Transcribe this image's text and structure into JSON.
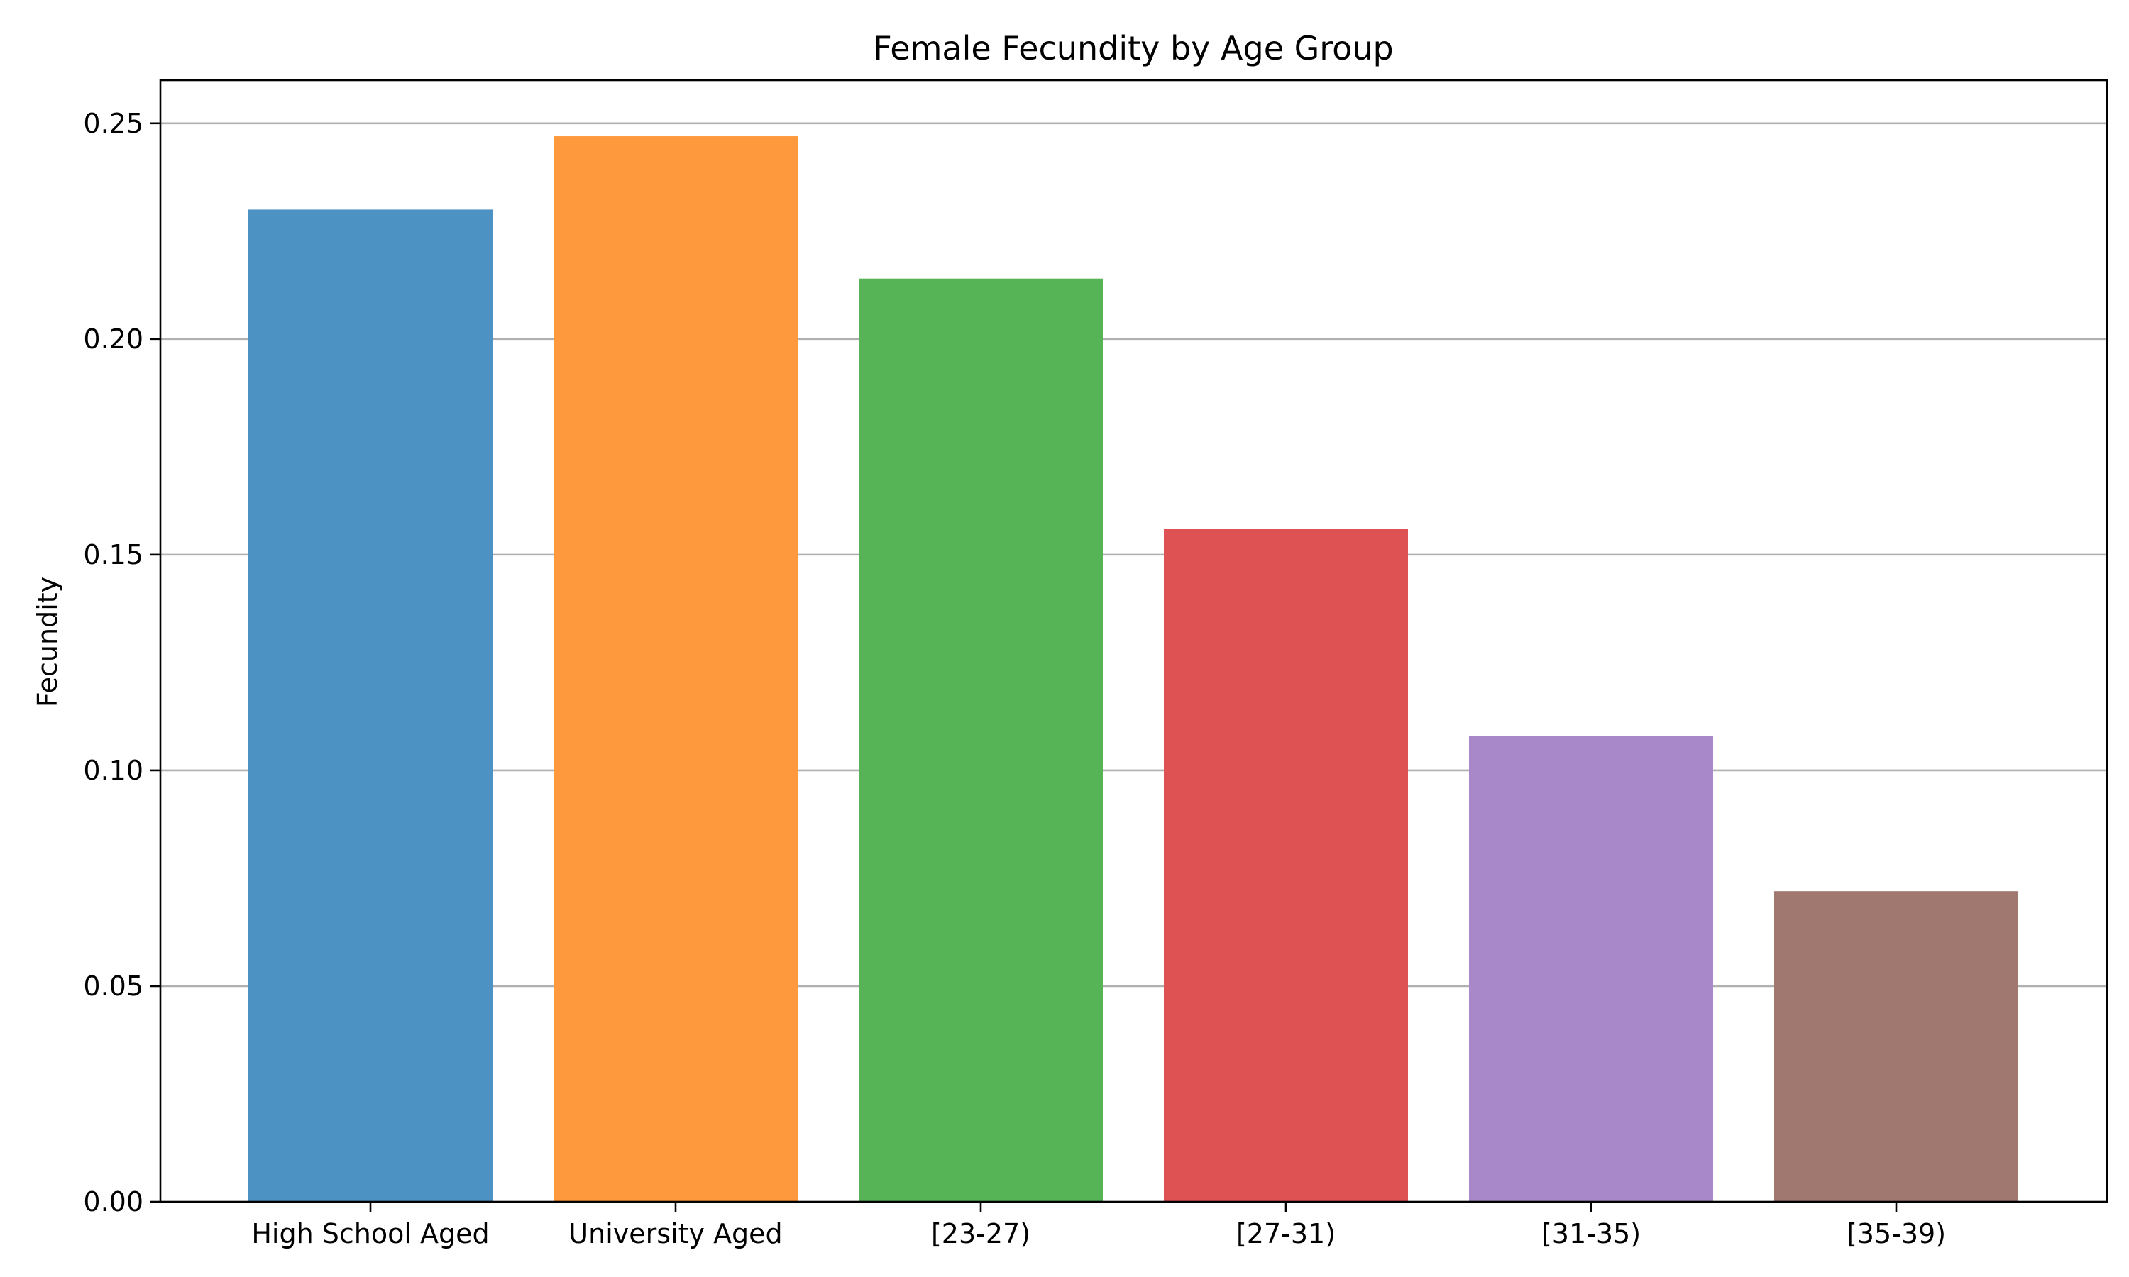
{
  "chart_data": {
    "type": "bar",
    "title": "Female Fecundity by Age Group",
    "xlabel": "",
    "ylabel": "Fecundity",
    "categories": [
      "High School Aged",
      "University Aged",
      "[23-27)",
      "[27-31)",
      "[31-35)",
      "[35-39)"
    ],
    "values": [
      0.23,
      0.247,
      0.214,
      0.156,
      0.108,
      0.072
    ],
    "colors": [
      "#4c92c3",
      "#ff993e",
      "#56b356",
      "#de5253",
      "#a988c9",
      "#a1786f"
    ],
    "ylim": [
      0,
      0.26
    ],
    "yticks": [
      0.0,
      0.05,
      0.1,
      0.15,
      0.2,
      0.25
    ],
    "ytick_labels": [
      "0.00",
      "0.05",
      "0.10",
      "0.15",
      "0.20",
      "0.25"
    ],
    "grid": "y",
    "legend": "none"
  }
}
